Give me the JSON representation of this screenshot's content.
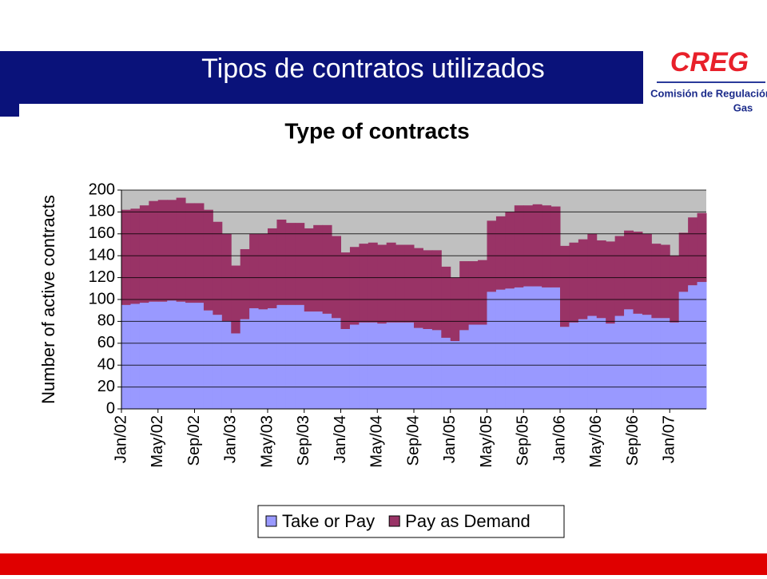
{
  "slide_title": "Tipos de contratos utilizados",
  "logo": {
    "name": "CREG",
    "line1": "Comisión de Regulación",
    "line2": "Gas"
  },
  "chart_data": {
    "type": "stacked_area",
    "title": "Type of contracts",
    "y_label": "Number of active contracts",
    "categories": [
      "Jan/02",
      null,
      null,
      null,
      "May/02",
      null,
      null,
      null,
      "Sep/02",
      null,
      null,
      null,
      "Jan/03",
      null,
      null,
      null,
      "May/03",
      null,
      null,
      null,
      "Sep/03",
      null,
      null,
      null,
      "Jan/04",
      null,
      null,
      null,
      "May/04",
      null,
      null,
      null,
      "Sep/04",
      null,
      null,
      null,
      "Jan/05",
      null,
      null,
      null,
      "May/05",
      null,
      null,
      null,
      "Sep/05",
      null,
      null,
      null,
      "Jan/06",
      null,
      null,
      null,
      "May/06",
      null,
      null,
      null,
      "Sep/06",
      null,
      null,
      null,
      "Jan/07",
      null,
      null,
      null
    ],
    "series": [
      {
        "name": "Take or Pay",
        "color": "#9999ff",
        "values": [
          95,
          96,
          97,
          98,
          98,
          99,
          98,
          97,
          97,
          90,
          86,
          80,
          69,
          82,
          92,
          91,
          92,
          95,
          95,
          95,
          89,
          89,
          87,
          83,
          73,
          77,
          79,
          79,
          78,
          79,
          79,
          79,
          74,
          73,
          72,
          65,
          62,
          72,
          77,
          77,
          107,
          109,
          110,
          111,
          112,
          112,
          111,
          111,
          75,
          79,
          82,
          85,
          83,
          78,
          85,
          91,
          87,
          86,
          83,
          83,
          79,
          107,
          113,
          116
        ]
      },
      {
        "name": "Pay as Demand",
        "color": "#993366",
        "values": [
          87,
          87,
          89,
          92,
          93,
          92,
          95,
          91,
          91,
          92,
          85,
          80,
          62,
          64,
          68,
          69,
          73,
          78,
          75,
          75,
          76,
          79,
          81,
          75,
          70,
          71,
          72,
          73,
          72,
          73,
          71,
          71,
          73,
          72,
          73,
          65,
          58,
          63,
          58,
          59,
          65,
          67,
          70,
          75,
          74,
          75,
          75,
          74,
          74,
          73,
          73,
          75,
          71,
          75,
          73,
          72,
          75,
          74,
          68,
          67,
          61,
          54,
          62,
          63
        ]
      }
    ],
    "ylim": [
      0,
      200
    ],
    "yticks": [
      0,
      20,
      40,
      60,
      80,
      100,
      120,
      140,
      160,
      180,
      200
    ],
    "grid": true,
    "plot_background": "#c0c0c0",
    "legend": "bottom"
  }
}
